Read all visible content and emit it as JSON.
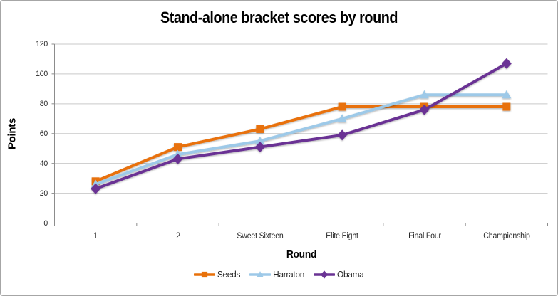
{
  "chart_data": {
    "type": "line",
    "title": "Stand-alone bracket scores by round",
    "xlabel": "Round",
    "ylabel": "Points",
    "categories": [
      "1",
      "2",
      "Sweet Sixteen",
      "Elite Eight",
      "Final Four",
      "Championship"
    ],
    "series": [
      {
        "name": "Seeds",
        "color": "#E8710A",
        "marker": "square",
        "values": [
          28,
          51,
          63,
          78,
          78,
          78
        ]
      },
      {
        "name": "Harraton",
        "color": "#9DC9E8",
        "marker": "triangle",
        "values": [
          26,
          46,
          55,
          70,
          86,
          86
        ]
      },
      {
        "name": "Obama",
        "color": "#6A3394",
        "marker": "diamond",
        "values": [
          23,
          43,
          51,
          59,
          76,
          107
        ]
      }
    ],
    "ylim": [
      0,
      120
    ],
    "yticks": [
      0,
      20,
      40,
      60,
      80,
      100,
      120
    ],
    "grid": true,
    "legend_position": "bottom",
    "colors": {
      "gridline": "#C9C9C9",
      "axis": "#8C8C8C",
      "text": "#262626",
      "title": "#000000",
      "background": "#FFFFFF",
      "border": "#A6A6A6"
    }
  }
}
